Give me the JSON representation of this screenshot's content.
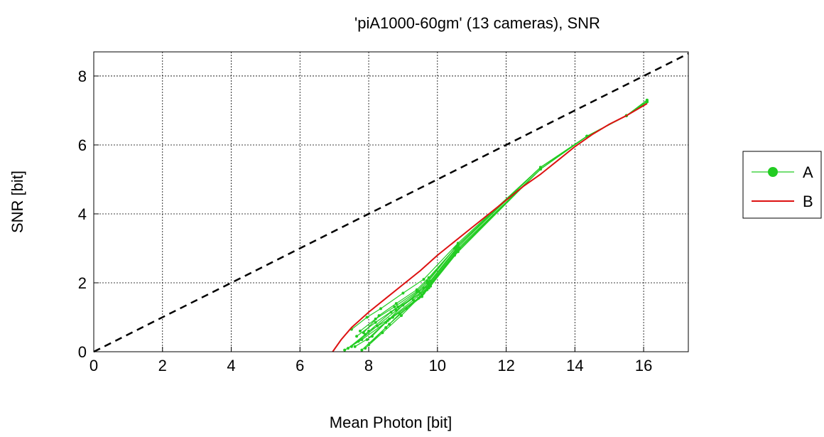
{
  "chart_data": {
    "type": "line",
    "title": "'piA1000-60gm' (13 cameras), SNR",
    "xlabel": "Mean Photon [bit]",
    "ylabel": "SNR [bit]",
    "xlim": [
      0,
      17.3
    ],
    "ylim": [
      0,
      8.7
    ],
    "xticks": [
      0,
      2,
      4,
      6,
      8,
      10,
      12,
      14,
      16
    ],
    "yticks": [
      0,
      2,
      4,
      6,
      8
    ],
    "grid": true,
    "legend_position": "outside-right",
    "series": [
      {
        "name": "A",
        "color": "#22cc22",
        "marker": "dot",
        "curves": [
          [
            [
              7.5,
              0.65
            ],
            [
              7.95,
              1.0
            ],
            [
              8.35,
              1.25
            ],
            [
              9.0,
              1.7
            ],
            [
              9.6,
              2.1
            ],
            [
              10.6,
              3.15
            ],
            [
              13.0,
              5.35
            ],
            [
              14.35,
              6.25
            ],
            [
              15.5,
              6.85
            ],
            [
              16.1,
              7.3
            ]
          ],
          [
            [
              7.85,
              0.55
            ],
            [
              8.3,
              1.05
            ],
            [
              8.8,
              1.4
            ],
            [
              9.4,
              1.8
            ],
            [
              9.75,
              2.15
            ],
            [
              10.6,
              3.1
            ],
            [
              13.0,
              5.35
            ],
            [
              14.35,
              6.25
            ],
            [
              15.5,
              6.85
            ],
            [
              16.1,
              7.25
            ]
          ],
          [
            [
              7.7,
              0.3
            ],
            [
              8.25,
              0.75
            ],
            [
              8.8,
              1.2
            ],
            [
              9.5,
              1.7
            ],
            [
              9.75,
              2.0
            ],
            [
              10.55,
              3.0
            ],
            [
              13.0,
              5.35
            ],
            [
              14.35,
              6.25
            ],
            [
              15.5,
              6.85
            ],
            [
              16.1,
              7.25
            ]
          ],
          [
            [
              7.6,
              0.15
            ],
            [
              8.1,
              0.45
            ],
            [
              8.6,
              0.95
            ],
            [
              9.3,
              1.5
            ],
            [
              9.7,
              1.85
            ],
            [
              10.5,
              2.85
            ],
            [
              13.0,
              5.3
            ],
            [
              14.35,
              6.25
            ],
            [
              15.5,
              6.85
            ],
            [
              16.1,
              7.25
            ]
          ],
          [
            [
              7.3,
              0.05
            ],
            [
              7.8,
              0.35
            ],
            [
              8.5,
              0.85
            ],
            [
              9.45,
              1.55
            ],
            [
              9.7,
              1.8
            ],
            [
              10.5,
              2.8
            ],
            [
              13.0,
              5.3
            ],
            [
              14.35,
              6.25
            ],
            [
              15.5,
              6.85
            ],
            [
              16.1,
              7.25
            ]
          ],
          [
            [
              7.9,
              0.1
            ],
            [
              8.4,
              0.55
            ],
            [
              8.95,
              1.05
            ],
            [
              9.55,
              1.65
            ],
            [
              9.8,
              1.9
            ],
            [
              10.6,
              2.95
            ],
            [
              13.0,
              5.3
            ],
            [
              14.35,
              6.25
            ],
            [
              15.5,
              6.85
            ],
            [
              16.1,
              7.25
            ]
          ],
          [
            [
              7.75,
              0.6
            ],
            [
              8.2,
              0.95
            ],
            [
              8.75,
              1.3
            ],
            [
              9.4,
              1.75
            ],
            [
              9.7,
              2.05
            ],
            [
              10.55,
              3.05
            ],
            [
              13.0,
              5.35
            ],
            [
              14.35,
              6.25
            ],
            [
              15.5,
              6.85
            ],
            [
              16.1,
              7.25
            ]
          ],
          [
            [
              7.5,
              0.15
            ],
            [
              8.0,
              0.6
            ],
            [
              8.7,
              1.0
            ],
            [
              9.5,
              1.6
            ],
            [
              9.75,
              1.9
            ],
            [
              10.55,
              2.9
            ],
            [
              13.0,
              5.3
            ],
            [
              14.35,
              6.25
            ],
            [
              15.5,
              6.85
            ],
            [
              16.1,
              7.25
            ]
          ],
          [
            [
              8.0,
              0.2
            ],
            [
              8.6,
              0.8
            ],
            [
              9.1,
              1.25
            ],
            [
              9.6,
              1.7
            ],
            [
              9.8,
              1.95
            ],
            [
              10.65,
              3.0
            ],
            [
              13.0,
              5.3
            ],
            [
              14.35,
              6.25
            ],
            [
              15.5,
              6.85
            ],
            [
              16.1,
              7.25
            ]
          ],
          [
            [
              7.8,
              0.05
            ],
            [
              8.5,
              0.7
            ],
            [
              8.9,
              1.1
            ],
            [
              9.55,
              1.6
            ],
            [
              9.75,
              1.85
            ],
            [
              10.6,
              2.9
            ],
            [
              13.0,
              5.3
            ],
            [
              14.35,
              6.25
            ],
            [
              15.5,
              6.85
            ],
            [
              16.1,
              7.25
            ]
          ],
          [
            [
              7.65,
              0.45
            ],
            [
              8.2,
              0.85
            ],
            [
              8.85,
              1.3
            ],
            [
              9.45,
              1.75
            ],
            [
              9.7,
              2.0
            ],
            [
              10.5,
              3.0
            ],
            [
              13.0,
              5.35
            ],
            [
              14.35,
              6.25
            ],
            [
              15.5,
              6.85
            ],
            [
              16.1,
              7.3
            ]
          ],
          [
            [
              7.95,
              0.35
            ],
            [
              8.55,
              0.9
            ],
            [
              9.0,
              1.35
            ],
            [
              9.6,
              1.85
            ],
            [
              9.8,
              2.05
            ],
            [
              10.6,
              3.05
            ],
            [
              13.0,
              5.35
            ],
            [
              14.35,
              6.25
            ],
            [
              15.5,
              6.85
            ],
            [
              16.1,
              7.25
            ]
          ],
          [
            [
              7.4,
              0.1
            ],
            [
              7.9,
              0.5
            ],
            [
              8.65,
              1.15
            ],
            [
              9.5,
              1.7
            ],
            [
              9.75,
              1.95
            ],
            [
              10.55,
              2.95
            ],
            [
              13.0,
              5.3
            ],
            [
              14.35,
              6.25
            ],
            [
              15.5,
              6.85
            ],
            [
              16.1,
              7.25
            ]
          ]
        ]
      },
      {
        "name": "B",
        "color": "#dd1111",
        "marker": "none",
        "points": [
          [
            6.95,
            0.0
          ],
          [
            7.2,
            0.35
          ],
          [
            7.5,
            0.7
          ],
          [
            8.0,
            1.15
          ],
          [
            8.5,
            1.55
          ],
          [
            9.0,
            1.95
          ],
          [
            9.5,
            2.35
          ],
          [
            10.0,
            2.8
          ],
          [
            10.5,
            3.2
          ],
          [
            11.0,
            3.6
          ],
          [
            11.5,
            4.0
          ],
          [
            12.0,
            4.4
          ],
          [
            12.5,
            4.8
          ],
          [
            13.0,
            5.15
          ],
          [
            13.5,
            5.55
          ],
          [
            14.0,
            5.95
          ],
          [
            14.5,
            6.3
          ],
          [
            15.0,
            6.6
          ],
          [
            15.5,
            6.85
          ],
          [
            16.1,
            7.2
          ]
        ]
      },
      {
        "color": "#000000",
        "style": "dashed",
        "points": [
          [
            0,
            0
          ],
          [
            17.3,
            8.65
          ]
        ]
      }
    ]
  }
}
